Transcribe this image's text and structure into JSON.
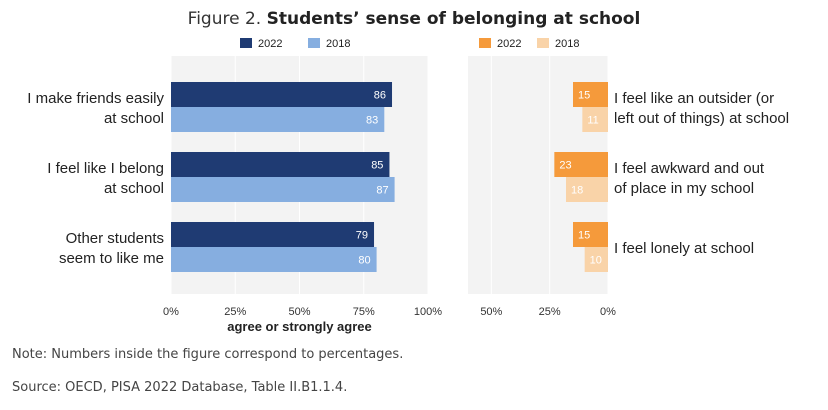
{
  "title": {
    "prefix": "Figure 2. ",
    "main": "Students’ sense of belonging at school"
  },
  "colors": {
    "pos_2022": "#1f3b73",
    "pos_2018": "#86aee0",
    "neg_2022": "#f59a3b",
    "neg_2018": "#f9d3a8",
    "panel_bg": "#f3f3f3",
    "grid": "#ffffff"
  },
  "chart_data": [
    {
      "type": "bar",
      "orientation": "horizontal",
      "panel": "left",
      "categories": [
        "I make friends easily at school",
        "I feel like I belong at school",
        "Other students seem to like me"
      ],
      "category_lines": [
        [
          "I make friends easily",
          "at school"
        ],
        [
          "I feel like I belong",
          "at school"
        ],
        [
          "Other students",
          "seem to like me"
        ]
      ],
      "series": [
        {
          "name": "2022",
          "values": [
            86,
            85,
            79
          ]
        },
        {
          "name": "2018",
          "values": [
            83,
            87,
            80
          ]
        }
      ],
      "xlim": [
        0,
        100
      ],
      "xticks": [
        "0%",
        "25%",
        "50%",
        "75%",
        "100%"
      ],
      "xlabel": "agree or strongly agree",
      "legend": "top"
    },
    {
      "type": "bar",
      "orientation": "horizontal",
      "panel": "right",
      "direction": "reversed",
      "categories": [
        "I feel like an outsider (or left out of things) at school",
        "I feel awkward and out of place in my school",
        "I feel lonely at school"
      ],
      "category_lines": [
        [
          "I feel like an outsider (or",
          "left out of things) at school"
        ],
        [
          "I feel awkward and out",
          "of place in my school"
        ],
        [
          "I feel lonely at school"
        ]
      ],
      "series": [
        {
          "name": "2022",
          "values": [
            15,
            23,
            15
          ]
        },
        {
          "name": "2018",
          "values": [
            11,
            18,
            10
          ]
        }
      ],
      "xlim": [
        0,
        60
      ],
      "xticks": [
        "50%",
        "25%",
        "0%"
      ],
      "xtick_values": [
        50,
        25,
        0
      ],
      "legend": "top"
    }
  ],
  "notes": {
    "note": "Note: Numbers inside the figure correspond to percentages.",
    "source": "Source: OECD, PISA 2022 Database, Table II.B1.1.4."
  }
}
